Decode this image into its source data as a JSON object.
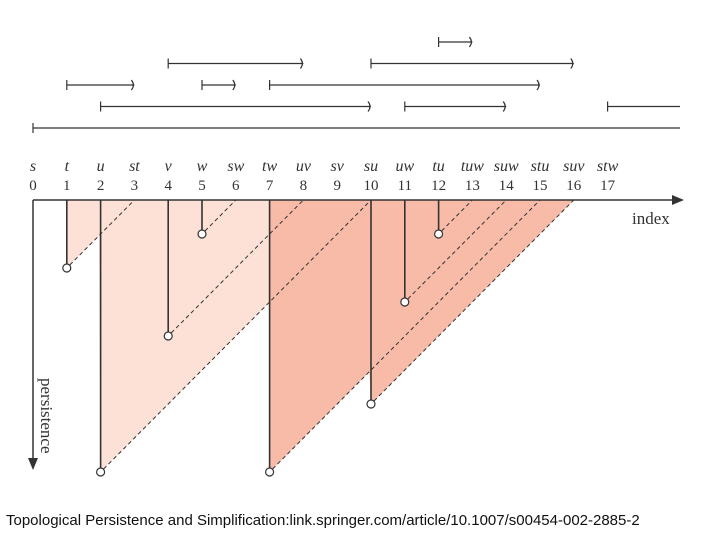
{
  "simplices": [
    "s",
    "t",
    "u",
    "st",
    "v",
    "w",
    "sw",
    "tw",
    "uv",
    "sv",
    "su",
    "uw",
    "tu",
    "tuw",
    "suw",
    "stu",
    "suv",
    "stw"
  ],
  "indices": [
    "0",
    "1",
    "2",
    "3",
    "4",
    "5",
    "6",
    "7",
    "8",
    "9",
    "10",
    "11",
    "12",
    "13",
    "14",
    "15",
    "16",
    "17"
  ],
  "axis": {
    "x_label": "index",
    "y_label": "persistence"
  },
  "barcode": [
    {
      "birth": 0,
      "death": null
    },
    {
      "birth": 1,
      "death": 3
    },
    {
      "birth": 2,
      "death": 10
    },
    {
      "birth": 4,
      "death": 8
    },
    {
      "birth": 5,
      "death": 6
    },
    {
      "birth": 7,
      "death": 15
    },
    {
      "birth": 10,
      "death": 16
    },
    {
      "birth": 11,
      "death": 14
    },
    {
      "birth": 12,
      "death": 13
    },
    {
      "birth": 17,
      "death": null
    }
  ],
  "pairs": [
    {
      "birth": 1,
      "death": 3,
      "component": "light"
    },
    {
      "birth": 2,
      "death": 10,
      "component": "light"
    },
    {
      "birth": 4,
      "death": 8,
      "component": "light"
    },
    {
      "birth": 5,
      "death": 6,
      "component": "light"
    },
    {
      "birth": 7,
      "death": 15,
      "component": "dark"
    },
    {
      "birth": 10,
      "death": 16,
      "component": "dark"
    },
    {
      "birth": 11,
      "death": 14,
      "component": "dark"
    },
    {
      "birth": 12,
      "death": 13,
      "component": "dark"
    }
  ],
  "colors": {
    "light_region": "#fde0d6",
    "dark_region": "#f7bba8",
    "ink": "#333333"
  },
  "caption": "Topological Persistence and Simplification:link.springer.com/article/10.1007/s00454-002-2885-2"
}
